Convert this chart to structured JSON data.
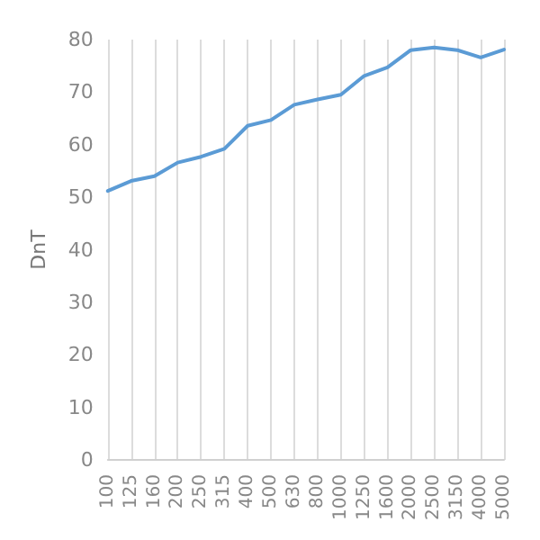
{
  "chart_data": {
    "type": "line",
    "ylabel": "DnT",
    "categories": [
      "100",
      "125",
      "160",
      "200",
      "250",
      "315",
      "400",
      "500",
      "630",
      "800",
      "1000",
      "1250",
      "1600",
      "2000",
      "2500",
      "3150",
      "4000",
      "5000"
    ],
    "series": [
      {
        "color": "#5b9bd5",
        "values": [
          51.2,
          53.1,
          54.0,
          56.6,
          57.7,
          59.2,
          63.6,
          64.7,
          67.6,
          68.6,
          69.5,
          73.1,
          74.7,
          78.0,
          78.5,
          78.0,
          76.6,
          78.1
        ]
      }
    ],
    "ylim": [
      0,
      80
    ],
    "yticks": [
      0,
      10,
      20,
      30,
      40,
      50,
      60,
      70,
      80
    ],
    "grid": "x",
    "marker": "none",
    "line_style": "solid"
  }
}
